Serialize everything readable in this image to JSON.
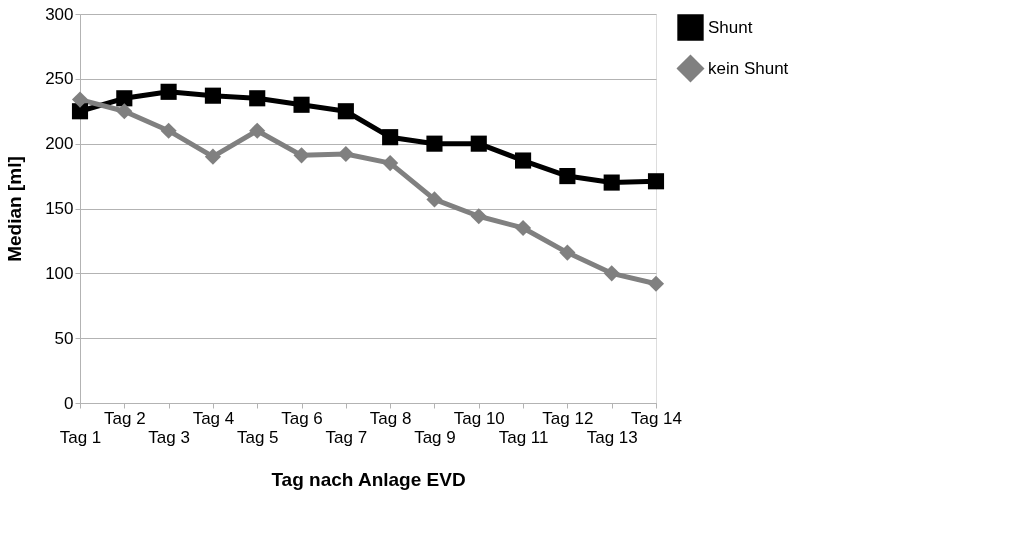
{
  "chart_data": {
    "type": "line",
    "xlabel": "Tag nach Anlage EVD",
    "ylabel": "Median [ml]",
    "categories": [
      "Tag 1",
      "Tag 2",
      "Tag 3",
      "Tag 4",
      "Tag 5",
      "Tag 6",
      "Tag 7",
      "Tag 8",
      "Tag 9",
      "Tag 10",
      "Tag 11",
      "Tag 12",
      "Tag 13",
      "Tag 14"
    ],
    "series": [
      {
        "name": "Shunt",
        "color": "#000000",
        "marker": "square",
        "values": [
          225,
          235,
          240,
          237,
          235,
          230,
          225,
          205,
          200,
          200,
          187,
          175,
          170,
          171
        ]
      },
      {
        "name": "kein Shunt",
        "color": "#808080",
        "marker": "diamond",
        "values": [
          234,
          225,
          210,
          190,
          210,
          191,
          192,
          185,
          157,
          144,
          135,
          116,
          100,
          92
        ]
      }
    ],
    "ylim": [
      0,
      300
    ],
    "yticks": [
      0,
      50,
      100,
      150,
      200,
      250,
      300
    ],
    "grid": "y",
    "legend": "right",
    "line_style": "solid"
  }
}
